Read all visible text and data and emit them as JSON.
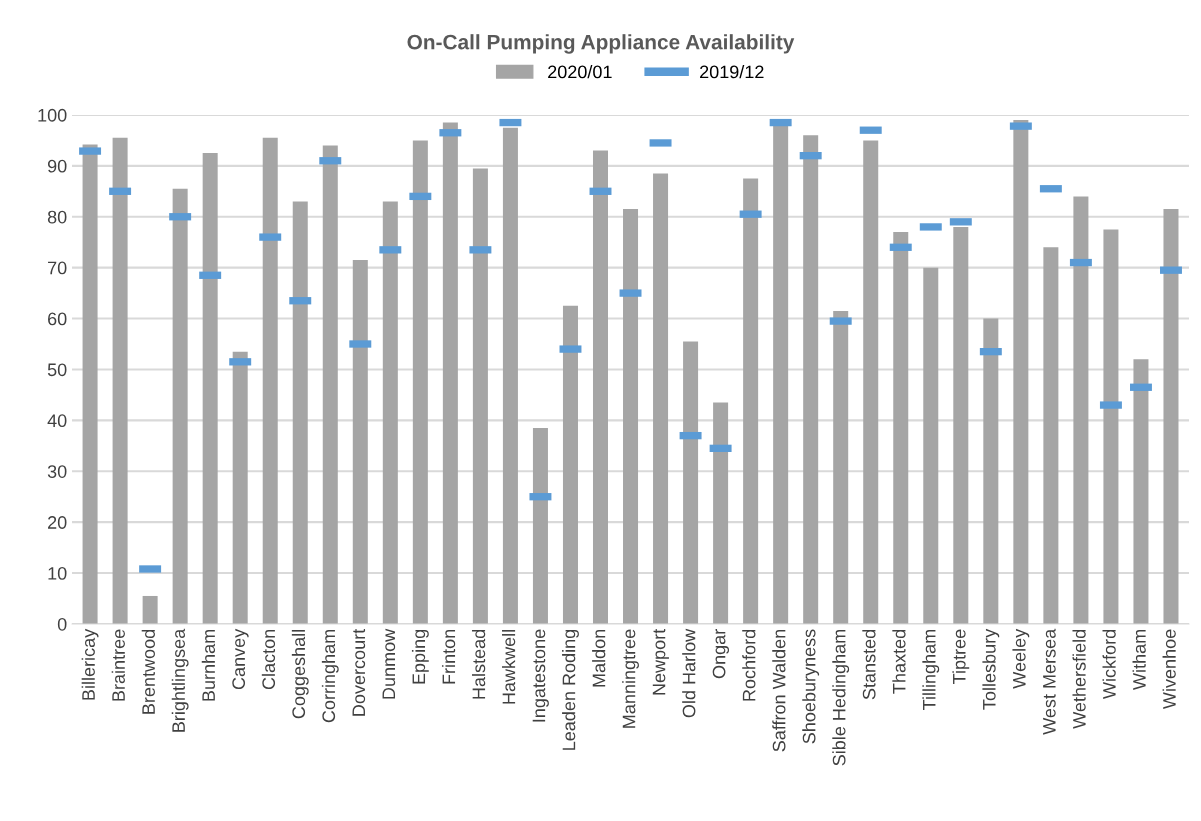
{
  "chart_data": {
    "type": "bar",
    "title": "On-Call Pumping Appliance Availability",
    "categories": [
      "Billericay",
      "Braintree",
      "Brentwood",
      "Brightlingsea",
      "Burnham",
      "Canvey",
      "Clacton",
      "Coggeshall",
      "Corringham",
      "Dovercourt",
      "Dunmow",
      "Epping",
      "Frinton",
      "Halstead",
      "Hawkwell",
      "Ingatestone",
      "Leaden Roding",
      "Maldon",
      "Manningtree",
      "Newport",
      "Old Harlow",
      "Ongar",
      "Rochford",
      "Saffron Walden",
      "Shoeburyness",
      "Sible Hedingham",
      "Stansted",
      "Thaxted",
      "Tillingham",
      "Tiptree",
      "Tollesbury",
      "Weeley",
      "West Mersea",
      "Wethersfield",
      "Wickford",
      "Witham",
      "Wivenhoe"
    ],
    "series": [
      {
        "name": "2020/01",
        "color": "#a5a5a5",
        "values": [
          94.2,
          95.5,
          5.5,
          85.5,
          92.5,
          53.5,
          95.5,
          83,
          94,
          71.5,
          83,
          95,
          98.5,
          89.5,
          97.5,
          38.5,
          62.5,
          93,
          81.5,
          88.5,
          55.5,
          43.5,
          87.5,
          98,
          96,
          61.5,
          95,
          77,
          70,
          78,
          60,
          99,
          74,
          84,
          77.5,
          52,
          81.5
        ]
      },
      {
        "name": "2019/12",
        "type": "scatter",
        "color": "#5b9bd5",
        "values": [
          92.9,
          85,
          10.8,
          80,
          68.5,
          51.5,
          76,
          63.5,
          91,
          55,
          73.5,
          84,
          96.5,
          73.5,
          98.5,
          25,
          54,
          85,
          65,
          94.5,
          37,
          34.5,
          80.5,
          98.5,
          92,
          59.5,
          97,
          74,
          78,
          79,
          53.5,
          97.8,
          85.5,
          71,
          43,
          46.5,
          69.5
        ]
      }
    ],
    "ylim": [
      0,
      100
    ],
    "yticks": [
      0,
      10,
      20,
      30,
      40,
      50,
      60,
      70,
      80,
      90,
      100
    ],
    "grid": "y",
    "legend": "top"
  }
}
